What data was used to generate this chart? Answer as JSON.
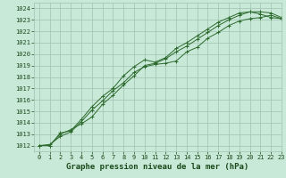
{
  "title": "Graphe pression niveau de la mer (hPa)",
  "xlim": [
    -0.5,
    23
  ],
  "ylim": [
    1011.5,
    1024.5
  ],
  "yticks": [
    1012,
    1013,
    1014,
    1015,
    1016,
    1017,
    1018,
    1019,
    1020,
    1021,
    1022,
    1023,
    1024
  ],
  "xticks": [
    0,
    1,
    2,
    3,
    4,
    5,
    6,
    7,
    8,
    9,
    10,
    11,
    12,
    13,
    14,
    15,
    16,
    17,
    18,
    19,
    20,
    21,
    22,
    23
  ],
  "line1_x": [
    0,
    1,
    2,
    3,
    4,
    5,
    6,
    7,
    8,
    9,
    10,
    11,
    12,
    13,
    14,
    15,
    16,
    17,
    18,
    19,
    20,
    21,
    22,
    23
  ],
  "line1_y": [
    1012.0,
    1012.1,
    1012.8,
    1013.2,
    1014.1,
    1015.1,
    1015.9,
    1016.8,
    1017.5,
    1018.4,
    1018.9,
    1019.1,
    1019.2,
    1019.4,
    1020.2,
    1020.6,
    1021.4,
    1021.9,
    1022.5,
    1022.9,
    1023.1,
    1023.2,
    1023.4,
    1023.1
  ],
  "line2_x": [
    0,
    1,
    2,
    3,
    4,
    5,
    6,
    7,
    8,
    9,
    10,
    11,
    12,
    13,
    14,
    15,
    16,
    17,
    18,
    19,
    20,
    21,
    22,
    23
  ],
  "line2_y": [
    1012.0,
    1012.0,
    1013.0,
    1013.4,
    1013.9,
    1014.5,
    1015.6,
    1016.4,
    1017.3,
    1018.1,
    1019.0,
    1019.2,
    1019.6,
    1020.2,
    1020.7,
    1021.3,
    1021.9,
    1022.5,
    1023.0,
    1023.4,
    1023.7,
    1023.7,
    1023.6,
    1023.2
  ],
  "line3_x": [
    0,
    1,
    2,
    3,
    4,
    5,
    6,
    7,
    8,
    9,
    10,
    11,
    12,
    13,
    14,
    15,
    16,
    17,
    18,
    19,
    20,
    21,
    22,
    23
  ],
  "line3_y": [
    1012.0,
    1012.0,
    1013.1,
    1013.3,
    1014.3,
    1015.4,
    1016.3,
    1017.0,
    1018.1,
    1018.9,
    1019.5,
    1019.3,
    1019.7,
    1020.5,
    1021.0,
    1021.6,
    1022.2,
    1022.8,
    1023.2,
    1023.6,
    1023.7,
    1023.5,
    1023.2,
    1023.1
  ],
  "line_color": "#2d6a2d",
  "bg_color": "#c8e8d8",
  "grid_color": "#a0c0b0",
  "text_color": "#1a4a1a",
  "title_color": "#1a4a1a",
  "marker": "+",
  "marker_size": 3.5,
  "linewidth": 0.7,
  "title_fontsize": 6.5,
  "tick_fontsize": 5.0
}
